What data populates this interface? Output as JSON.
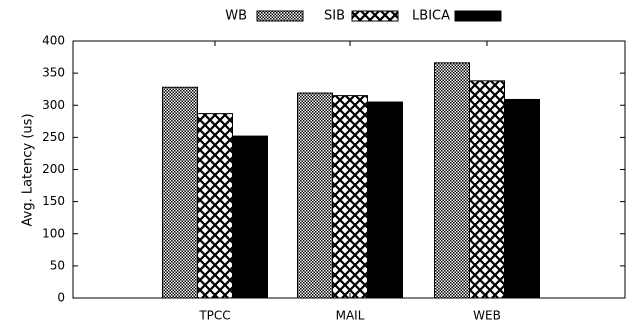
{
  "chart_data": {
    "type": "bar",
    "title": "",
    "xlabel": "",
    "ylabel": "Avg. Latency (us)",
    "categories": [
      "TPCC",
      "MAIL",
      "WEB"
    ],
    "ylim": [
      0,
      400
    ],
    "yticks": [
      0,
      50,
      100,
      150,
      200,
      250,
      300,
      350,
      400
    ],
    "grid": false,
    "legend_position": "top",
    "series": [
      {
        "name": "WB",
        "values": [
          328,
          319,
          366
        ],
        "pattern": "fine-checker"
      },
      {
        "name": "SIB",
        "values": [
          287,
          315,
          338
        ],
        "pattern": "crosshatch"
      },
      {
        "name": "LBICA",
        "values": [
          252,
          305,
          309
        ],
        "pattern": "solid-black"
      }
    ]
  }
}
